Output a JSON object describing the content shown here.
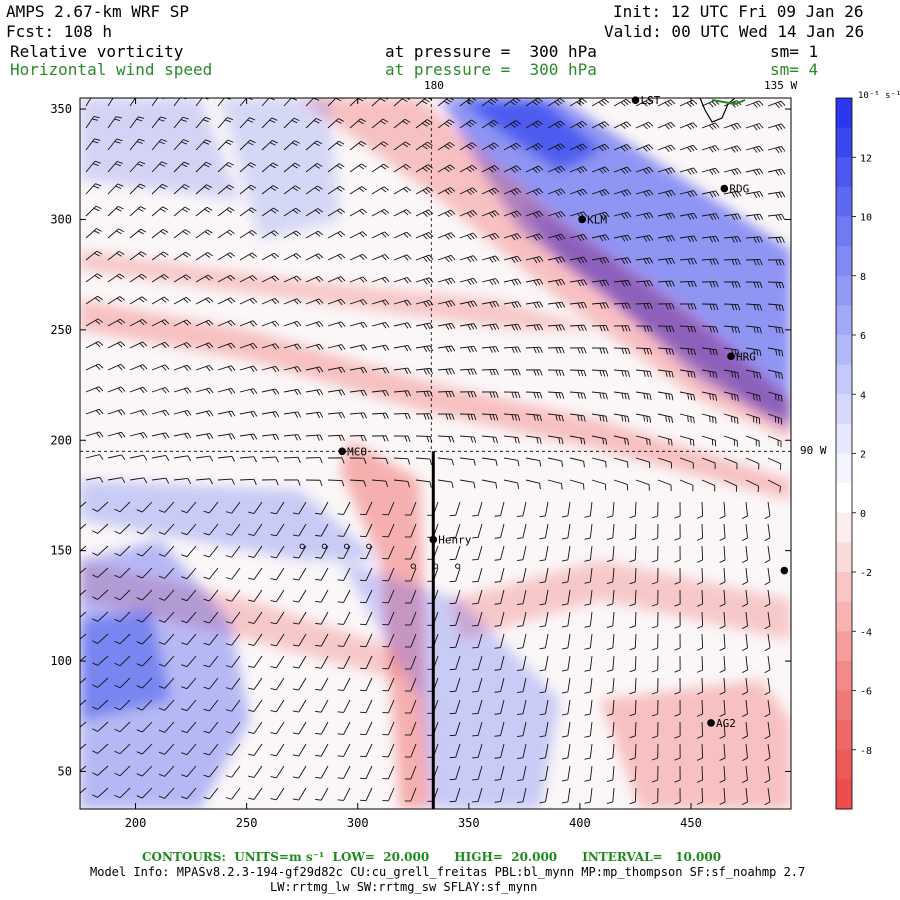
{
  "header": {
    "model": "AMPS 2.67-km WRF SP",
    "forecast": "Fcst: 108 h",
    "init": "Init: 12 UTC Fri 09 Jan 26",
    "valid": "Valid: 00 UTC Wed 14 Jan 26",
    "field1": "Relative vorticity",
    "field1_level": "at pressure =  300 hPa",
    "field1_sm": "sm= 1",
    "field2": "Horizontal wind speed",
    "field2_level": "at pressure =  300 hPa",
    "field2_sm": "sm= 4",
    "field2_color": "#2a8a2a"
  },
  "map": {
    "x_axis": {
      "min": 175,
      "max": 495,
      "ticks": [
        "200",
        "250",
        "300",
        "350",
        "400",
        "450"
      ]
    },
    "y_axis": {
      "min": 33,
      "max": 355,
      "ticks": [
        "350",
        "300",
        "250",
        "200",
        "150",
        "100",
        "50"
      ]
    },
    "meridian_labels": {
      "lon180": "180",
      "lon135w": "135 W",
      "lon90w": "90 W"
    },
    "stations": [
      {
        "name": "LST",
        "x": 425,
        "y": 354
      },
      {
        "name": "RDG",
        "x": 465,
        "y": 314
      },
      {
        "name": "KLM",
        "x": 401,
        "y": 300
      },
      {
        "name": "HRG",
        "x": 468,
        "y": 238
      },
      {
        "name": "MCO",
        "x": 293,
        "y": 195
      },
      {
        "name": "Henry",
        "x": 334,
        "y": 155
      },
      {
        "name": "AG2",
        "x": 459,
        "y": 72
      },
      {
        "name": "",
        "x": 492,
        "y": 141
      }
    ],
    "calm_markers": [
      [
        275,
        152
      ],
      [
        285,
        152
      ],
      [
        295,
        152
      ],
      [
        305,
        152
      ],
      [
        325,
        143
      ],
      [
        335,
        143
      ],
      [
        345,
        143
      ]
    ],
    "vertical_line_x": 334,
    "vertical_line_y_top": 195,
    "horizontal_dash_y": 195,
    "colors": {
      "positive": "#3344ee",
      "negative": "#f05858",
      "coast": "#1c8a1c"
    }
  },
  "colorbar": {
    "units": "10⁻⁵ s⁻¹",
    "tick_labels": [
      "12",
      "10",
      "8",
      "6",
      "4",
      "2",
      "0",
      "-2",
      "-4",
      "-6",
      "-8"
    ],
    "levels": [
      14,
      13,
      12,
      11,
      10,
      9,
      8,
      7,
      6,
      5,
      4,
      3,
      2,
      1,
      0,
      -1,
      -2,
      -3,
      -4,
      -5,
      -6,
      -7,
      -8,
      -9,
      -10
    ],
    "colors": [
      "#2a37ee",
      "#3b47ef",
      "#4d58f0",
      "#5e69f2",
      "#6f7af3",
      "#8089f4",
      "#9199f5",
      "#a2a9f7",
      "#b3b8f8",
      "#c4c8fa",
      "#d5d8fb",
      "#e6e8fd",
      "#f3f4fe",
      "#ffffff",
      "#fdeeee",
      "#fbdada",
      "#f9c6c6",
      "#f7b2b2",
      "#f59e9e",
      "#f38a8a",
      "#f17878",
      "#ef6868",
      "#ee5a5a",
      "#ec4e4e"
    ]
  },
  "footer": {
    "contours": "CONTOURS:  UNITS=m s⁻¹  LOW=  20.000      HIGH=  20.000      INTERVAL=   10.000",
    "model_info": "Model Info: MPASv8.2.3-194-gf29d82c CU:cu_grell_freitas PBL:bl_mynn MP:mp_thompson SF:sf_noahmp 2.7",
    "model_info2": "LW:rrtmg_lw SW:rrtmg_sw SFLAY:sf_mynn"
  }
}
